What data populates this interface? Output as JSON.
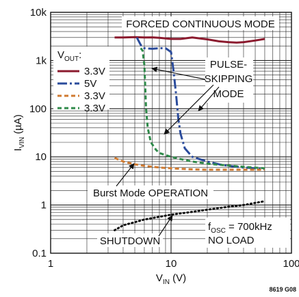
{
  "chart_data": {
    "type": "line",
    "xscale": "log",
    "yscale": "log",
    "xlim": [
      1,
      100
    ],
    "ylim": [
      0.1,
      10000
    ],
    "x_ticks": [
      "1",
      "10",
      "100"
    ],
    "y_ticks": [
      "0.1",
      "1",
      "10",
      "100",
      "1k",
      "10k"
    ],
    "xlabel": {
      "main": "V",
      "sub": "IN",
      "unit": " (V)"
    },
    "ylabel": {
      "main": "I",
      "sub": "VIN",
      "unit": " (µA)"
    },
    "legend": {
      "title_main": "V",
      "title_sub": "OUT",
      "title_suffix": ":",
      "placement": "upper-left"
    },
    "grid": true,
    "series": [
      {
        "name": "3.3V",
        "color": "#8b1a2e",
        "style": "solid",
        "x": [
          3.4,
          4,
          5,
          6,
          7,
          8,
          10,
          12,
          15,
          20,
          25,
          30,
          35,
          40,
          50,
          60
        ],
        "y": [
          3000,
          3000,
          3050,
          3000,
          3020,
          2950,
          2800,
          2800,
          3000,
          2750,
          2500,
          2400,
          2350,
          2400,
          2600,
          2800
        ]
      },
      {
        "name": "5V",
        "color": "#2a4b9b",
        "style": "dashdot",
        "x": [
          5.2,
          5.6,
          6,
          7,
          8,
          9,
          10,
          10.5,
          11,
          11.5,
          12,
          13,
          15,
          20,
          25,
          30,
          40,
          50,
          60
        ],
        "y": [
          3000,
          2100,
          1800,
          1750,
          1800,
          1800,
          1500,
          600,
          200,
          60,
          30,
          15,
          10,
          8,
          7,
          6.5,
          6,
          5.8,
          5.6
        ]
      },
      {
        "name": "3.3V",
        "color": "#d07a30",
        "style": "dashed",
        "x": [
          3.4,
          4,
          5,
          6,
          8,
          10,
          15,
          20,
          30,
          40,
          60
        ],
        "y": [
          9.5,
          8,
          7,
          6.5,
          6,
          5.8,
          5.5,
          5.4,
          5.4,
          5.4,
          5.4
        ]
      },
      {
        "name": "3.3V",
        "color": "#2f8a4a",
        "style": "dashed",
        "x": [
          5.6,
          5.8,
          6,
          6.1,
          6.2,
          6.4,
          6.8,
          7.5,
          8,
          10,
          12,
          15,
          20,
          30,
          40,
          60
        ],
        "y": [
          1800,
          1600,
          800,
          300,
          100,
          40,
          20,
          14,
          12,
          10,
          9,
          8,
          7.2,
          6.6,
          6.2,
          5.8
        ]
      },
      {
        "name": "SHUTDOWN",
        "color": "#111111",
        "style": "dotted",
        "x": [
          3.4,
          4,
          5,
          6,
          8,
          10,
          15,
          20,
          30,
          40,
          60
        ],
        "y": [
          0.3,
          0.38,
          0.44,
          0.5,
          0.57,
          0.63,
          0.72,
          0.8,
          0.92,
          1.0,
          1.2
        ]
      }
    ],
    "annotations": {
      "forced": "FORCED CONTINUOUS MODE",
      "pulse": [
        "PULSE-",
        "SKIPPING",
        "MODE"
      ],
      "burst": "Burst Mode OPERATION",
      "shutdown": "SHUTDOWN",
      "fosc_main": "f",
      "fosc_sub": "OSC",
      "fosc_value": " = 700kHz",
      "noload": "NO LOAD"
    },
    "figure_code": "8619 G08"
  }
}
